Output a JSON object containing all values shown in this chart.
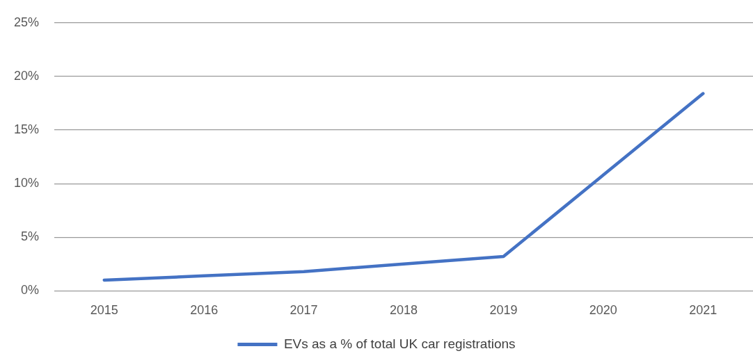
{
  "chart_data": {
    "type": "line",
    "categories": [
      "2015",
      "2016",
      "2017",
      "2018",
      "2019",
      "2020",
      "2021"
    ],
    "series": [
      {
        "name": "EVs as a % of total UK car registrations",
        "color": "#4472c4",
        "values": [
          1.0,
          1.4,
          1.8,
          2.5,
          3.2,
          10.8,
          18.4
        ]
      }
    ],
    "ylim": [
      0,
      25
    ],
    "yticks": [
      {
        "value": 0,
        "label": "0%"
      },
      {
        "value": 5,
        "label": "5%"
      },
      {
        "value": 10,
        "label": "10%"
      },
      {
        "value": 15,
        "label": "15%"
      },
      {
        "value": 20,
        "label": "20%"
      },
      {
        "value": 25,
        "label": "25%"
      }
    ],
    "grid": "y",
    "legend": "bottom",
    "marker": "none",
    "line_style": "solid"
  }
}
